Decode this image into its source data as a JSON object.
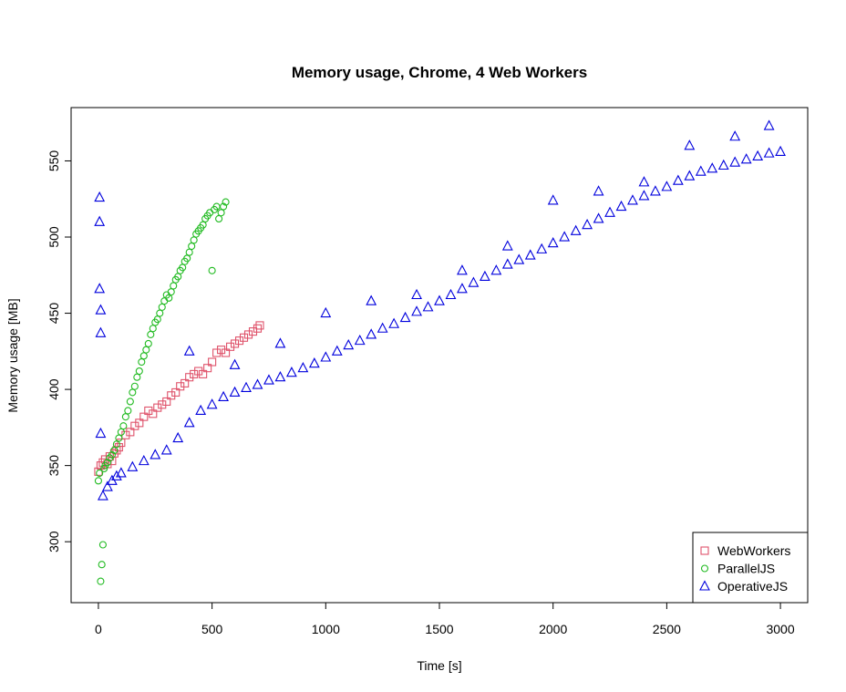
{
  "chart_data": {
    "type": "scatter",
    "title": "Memory usage, Chrome, 4 Web Workers",
    "xlabel": "Time [s]",
    "ylabel": "Memory usage [MB]",
    "xlim": [
      -120,
      3120
    ],
    "ylim": [
      260,
      585
    ],
    "x_ticks": [
      0,
      500,
      1000,
      1500,
      2000,
      2500,
      3000
    ],
    "y_ticks": [
      300,
      350,
      400,
      450,
      500,
      550
    ],
    "grid": false,
    "legend_position": "bottom-right",
    "series": [
      {
        "name": "WebWorkers",
        "marker": "square",
        "color": "#DF536B",
        "x": [
          0,
          10,
          20,
          30,
          40,
          50,
          60,
          70,
          80,
          90,
          100,
          120,
          140,
          160,
          180,
          200,
          220,
          240,
          260,
          280,
          300,
          320,
          340,
          360,
          380,
          400,
          420,
          440,
          460,
          480,
          500,
          520,
          540,
          560,
          580,
          600,
          620,
          640,
          660,
          680,
          700,
          710
        ],
        "y": [
          346,
          350,
          352,
          354,
          351,
          356,
          353,
          358,
          360,
          362,
          365,
          370,
          372,
          376,
          378,
          382,
          386,
          384,
          388,
          390,
          392,
          396,
          398,
          402,
          404,
          408,
          410,
          412,
          410,
          414,
          418,
          424,
          426,
          424,
          428,
          430,
          432,
          434,
          436,
          438,
          440,
          442
        ]
      },
      {
        "name": "ParallelJS",
        "marker": "circle",
        "color": "#22BB22",
        "x": [
          0,
          5,
          10,
          15,
          20,
          25,
          30,
          40,
          50,
          60,
          70,
          80,
          90,
          100,
          110,
          120,
          130,
          140,
          150,
          160,
          170,
          180,
          190,
          200,
          210,
          220,
          230,
          240,
          250,
          260,
          270,
          280,
          290,
          300,
          310,
          320,
          330,
          340,
          350,
          360,
          370,
          380,
          390,
          400,
          410,
          420,
          430,
          440,
          450,
          460,
          470,
          480,
          490,
          500,
          510,
          520,
          530,
          540,
          550,
          560
        ],
        "y": [
          340,
          345,
          274,
          285,
          298,
          348,
          350,
          352,
          355,
          357,
          360,
          364,
          368,
          372,
          376,
          382,
          386,
          392,
          398,
          402,
          408,
          412,
          418,
          422,
          426,
          430,
          436,
          440,
          444,
          446,
          450,
          454,
          458,
          462,
          460,
          464,
          468,
          472,
          474,
          478,
          480,
          484,
          486,
          490,
          494,
          498,
          502,
          504,
          506,
          508,
          512,
          514,
          516,
          478,
          518,
          520,
          512,
          516,
          520,
          523
        ]
      },
      {
        "name": "OperativeJS",
        "marker": "triangle",
        "color": "#0000DD",
        "x": [
          5,
          5,
          5,
          10,
          10,
          10,
          20,
          40,
          60,
          80,
          100,
          150,
          200,
          250,
          300,
          350,
          400,
          450,
          500,
          550,
          600,
          650,
          700,
          750,
          800,
          850,
          900,
          950,
          1000,
          1050,
          1100,
          1150,
          1200,
          1250,
          1300,
          1350,
          1400,
          1450,
          1500,
          1550,
          1600,
          1650,
          1700,
          1750,
          1800,
          1850,
          1900,
          1950,
          2000,
          2050,
          2100,
          2150,
          2200,
          2250,
          2300,
          2350,
          2400,
          2450,
          2500,
          2550,
          2600,
          2650,
          2700,
          2750,
          2800,
          2850,
          2900,
          2950,
          3000,
          400,
          600,
          800,
          1000,
          1200,
          1400,
          1600,
          1800,
          2000,
          2200,
          2400,
          2600,
          2800,
          2950
        ],
        "y": [
          526,
          510,
          466,
          452,
          437,
          371,
          330,
          336,
          340,
          343,
          345,
          349,
          353,
          357,
          360,
          368,
          378,
          386,
          390,
          395,
          398,
          401,
          403,
          406,
          408,
          411,
          414,
          417,
          421,
          425,
          429,
          432,
          436,
          440,
          443,
          447,
          451,
          454,
          458,
          462,
          466,
          470,
          474,
          478,
          482,
          485,
          488,
          492,
          496,
          500,
          504,
          508,
          512,
          516,
          520,
          524,
          527,
          530,
          533,
          537,
          540,
          543,
          545,
          547,
          549,
          551,
          553,
          555,
          556,
          425,
          416,
          430,
          450,
          458,
          462,
          478,
          494,
          524,
          530,
          536,
          560,
          566,
          573
        ]
      }
    ]
  }
}
